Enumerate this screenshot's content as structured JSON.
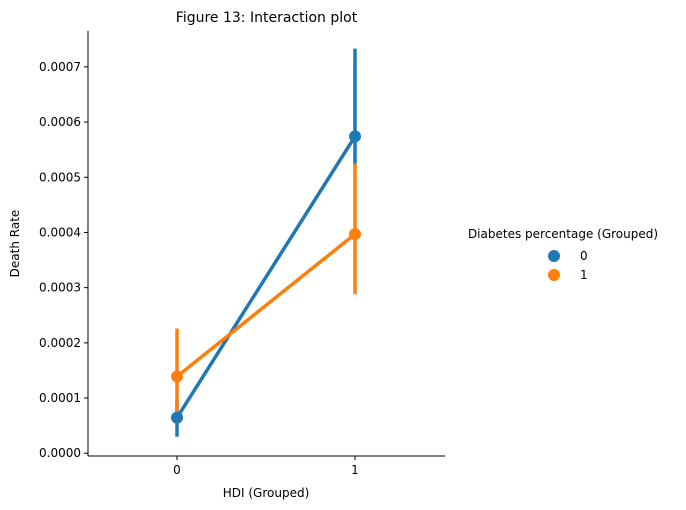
{
  "chart_data": {
    "type": "line",
    "title": "Figure 13: Interaction plot",
    "xlabel": "HDI (Grouped)",
    "ylabel": "Death Rate",
    "categories": [
      "0",
      "1"
    ],
    "ylim": [
      -5e-06,
      0.000765
    ],
    "yticks": [
      0.0,
      0.0001,
      0.0002,
      0.0003,
      0.0004,
      0.0005,
      0.0006,
      0.0007
    ],
    "ytick_labels": [
      "0.0000",
      "0.0001",
      "0.0002",
      "0.0003",
      "0.0004",
      "0.0005",
      "0.0006",
      "0.0007"
    ],
    "legend": {
      "title": "Diabetes percentage (Grouped)",
      "placement": "right"
    },
    "series": [
      {
        "name": "0",
        "color": "#1f77b4",
        "values": [
          6.45e-05,
          0.000574
        ],
        "ci": [
          [
            3e-05,
            9.5e-05
          ],
          [
            0.00052,
            0.000733
          ]
        ]
      },
      {
        "name": "1",
        "color": "#ff7f0e",
        "values": [
          0.000139,
          0.000397
        ],
        "ci": [
          [
            6.5e-05,
            0.000226
          ],
          [
            0.000288,
            0.000525
          ]
        ]
      }
    ],
    "grid": false
  }
}
